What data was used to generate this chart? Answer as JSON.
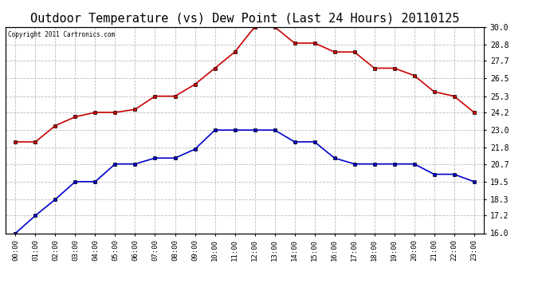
{
  "title": "Outdoor Temperature (vs) Dew Point (Last 24 Hours) 20110125",
  "copyright_text": "Copyright 2011 Cartronics.com",
  "hours": [
    "00:00",
    "01:00",
    "02:00",
    "03:00",
    "04:00",
    "05:00",
    "06:00",
    "07:00",
    "08:00",
    "09:00",
    "10:00",
    "11:00",
    "12:00",
    "13:00",
    "14:00",
    "15:00",
    "16:00",
    "17:00",
    "18:00",
    "19:00",
    "20:00",
    "21:00",
    "22:00",
    "23:00"
  ],
  "temp": [
    22.2,
    22.2,
    23.3,
    23.9,
    24.2,
    24.2,
    24.4,
    25.3,
    25.3,
    26.1,
    27.2,
    28.3,
    30.0,
    30.0,
    28.9,
    28.9,
    28.3,
    28.3,
    27.2,
    27.2,
    26.7,
    25.6,
    25.3,
    24.2
  ],
  "dew": [
    16.0,
    17.2,
    18.3,
    19.5,
    19.5,
    20.7,
    20.7,
    21.1,
    21.1,
    21.7,
    23.0,
    23.0,
    23.0,
    23.0,
    22.2,
    22.2,
    21.1,
    20.7,
    20.7,
    20.7,
    20.7,
    20.0,
    20.0,
    19.5
  ],
  "temp_color": "#cc0000",
  "dew_color": "#0000cc",
  "ylim": [
    16.0,
    30.0
  ],
  "yticks": [
    16.0,
    17.2,
    18.3,
    19.5,
    20.7,
    21.8,
    23.0,
    24.2,
    25.3,
    26.5,
    27.7,
    28.8,
    30.0
  ],
  "background_color": "#ffffff",
  "grid_color": "#bbbbbb",
  "title_fontsize": 11,
  "marker": "s",
  "marker_size": 3,
  "marker_color": "#000000",
  "linewidth": 1.2
}
